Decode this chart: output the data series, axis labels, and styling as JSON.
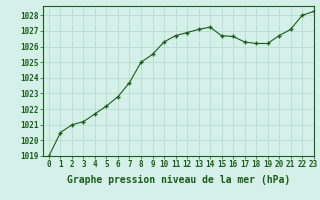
{
  "x": [
    0,
    1,
    2,
    3,
    4,
    5,
    6,
    7,
    8,
    9,
    10,
    11,
    12,
    13,
    14,
    15,
    16,
    17,
    18,
    19,
    20,
    21,
    22,
    23
  ],
  "y": [
    1019.0,
    1020.5,
    1021.0,
    1021.2,
    1021.7,
    1022.2,
    1022.8,
    1023.7,
    1025.0,
    1025.5,
    1026.3,
    1026.7,
    1026.9,
    1027.1,
    1027.25,
    1026.7,
    1026.65,
    1026.3,
    1026.2,
    1026.2,
    1026.7,
    1027.1,
    1028.0,
    1028.25
  ],
  "bg_color": "#d4f0e8",
  "line_color": "#1a5c1a",
  "marker_color": "#1a5c1a",
  "grid_color": "#b8ddd0",
  "xlabel": "Graphe pression niveau de la mer (hPa)",
  "xlim": [
    -0.5,
    23
  ],
  "ylim": [
    1019,
    1028.6
  ],
  "yticks": [
    1019,
    1020,
    1021,
    1022,
    1023,
    1024,
    1025,
    1026,
    1027,
    1028
  ],
  "xticks": [
    0,
    1,
    2,
    3,
    4,
    5,
    6,
    7,
    8,
    9,
    10,
    11,
    12,
    13,
    14,
    15,
    16,
    17,
    18,
    19,
    20,
    21,
    22,
    23
  ],
  "tick_fontsize": 5.5,
  "xlabel_fontsize": 7,
  "xlabel_fontweight": "bold"
}
